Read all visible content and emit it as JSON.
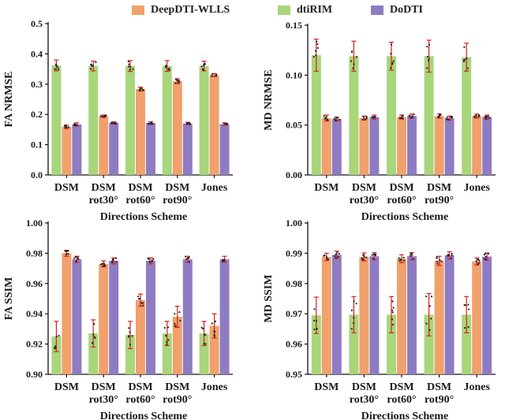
{
  "legend": [
    {
      "name": "DeepDTI-WLLS",
      "color": "#F0A16C"
    },
    {
      "name": "dtiRIM",
      "color": "#A8D67A"
    },
    {
      "name": "DoDTI",
      "color": "#8E7CC3"
    }
  ],
  "colors": {
    "error_bar": "#D62020",
    "point": "#222222",
    "axis": "#111111"
  },
  "chart_data": [
    {
      "type": "bar",
      "id": "fa-nrmse",
      "ylabel": "FA  NRMSE",
      "xlabel": "Directions Scheme",
      "ylim": [
        0,
        0.5
      ],
      "yticks": [
        "0.0",
        "0.1",
        "0.2",
        "0.3",
        "0.4",
        "0.5"
      ],
      "categories": [
        [
          "DSM"
        ],
        [
          "DSM",
          "rot30°"
        ],
        [
          "DSM",
          "rot60°"
        ],
        [
          "DSM",
          "rot90°"
        ],
        [
          "Jones"
        ]
      ],
      "series": [
        {
          "name": "dtiRIM",
          "values": [
            0.362,
            0.36,
            0.36,
            0.36,
            0.36
          ],
          "errors": [
            0.018,
            0.016,
            0.018,
            0.018,
            0.016
          ]
        },
        {
          "name": "DeepDTI-WLLS",
          "values": [
            0.159,
            0.194,
            0.284,
            0.31,
            0.33
          ],
          "errors": [
            0.006,
            0.004,
            0.006,
            0.008,
            0.005
          ]
        },
        {
          "name": "DoDTI",
          "values": [
            0.167,
            0.172,
            0.172,
            0.17,
            0.168
          ],
          "errors": [
            0.005,
            0.004,
            0.004,
            0.004,
            0.004
          ]
        }
      ]
    },
    {
      "type": "bar",
      "id": "md-nrmse",
      "ylabel": "MD  NRMSE",
      "xlabel": "Directions Scheme",
      "ylim": [
        0,
        0.15
      ],
      "yticks": [
        "0.00",
        "0.05",
        "0.10",
        "0.15"
      ],
      "categories": [
        [
          "DSM"
        ],
        [
          "DSM",
          "rot30°"
        ],
        [
          "DSM",
          "rot60°"
        ],
        [
          "DSM",
          "rot90°"
        ],
        [
          "Jones"
        ]
      ],
      "series": [
        {
          "name": "dtiRIM",
          "values": [
            0.12,
            0.119,
            0.119,
            0.119,
            0.118
          ],
          "errors": [
            0.016,
            0.015,
            0.014,
            0.016,
            0.014
          ]
        },
        {
          "name": "DeepDTI-WLLS",
          "values": [
            0.057,
            0.057,
            0.058,
            0.059,
            0.059
          ],
          "errors": [
            0.003,
            0.002,
            0.002,
            0.002,
            0.002
          ]
        },
        {
          "name": "DoDTI",
          "values": [
            0.056,
            0.058,
            0.059,
            0.057,
            0.058
          ],
          "errors": [
            0.002,
            0.002,
            0.002,
            0.002,
            0.002
          ]
        }
      ]
    },
    {
      "type": "bar",
      "id": "fa-ssim",
      "ylabel": "FA  SSIM",
      "xlabel": "Directions Scheme",
      "ylim": [
        0.9,
        1.0
      ],
      "yticks": [
        "0.90",
        "0.92",
        "0.94",
        "0.96",
        "0.98",
        "1.00"
      ],
      "categories": [
        [
          "DSM"
        ],
        [
          "DSM",
          "rot30°"
        ],
        [
          "DSM",
          "rot60°"
        ],
        [
          "DSM",
          "rot90°"
        ],
        [
          "Jones"
        ]
      ],
      "series": [
        {
          "name": "dtiRIM",
          "values": [
            0.925,
            0.927,
            0.926,
            0.927,
            0.927
          ],
          "errors": [
            0.01,
            0.009,
            0.009,
            0.008,
            0.008
          ]
        },
        {
          "name": "DeepDTI-WLLS",
          "values": [
            0.98,
            0.973,
            0.949,
            0.938,
            0.932
          ],
          "errors": [
            0.002,
            0.002,
            0.004,
            0.007,
            0.008
          ]
        },
        {
          "name": "DoDTI",
          "values": [
            0.976,
            0.975,
            0.975,
            0.976,
            0.976
          ],
          "errors": [
            0.002,
            0.002,
            0.002,
            0.002,
            0.002
          ]
        }
      ]
    },
    {
      "type": "bar",
      "id": "md-ssim",
      "ylabel": "MD  SSIM",
      "xlabel": "Directions Scheme",
      "ylim": [
        0.95,
        1.0
      ],
      "yticks": [
        "0.95",
        "0.96",
        "0.97",
        "0.98",
        "0.99",
        "1.00"
      ],
      "categories": [
        [
          "DSM"
        ],
        [
          "DSM",
          "rot30°"
        ],
        [
          "DSM",
          "rot60°"
        ],
        [
          "DSM",
          "rot90°"
        ],
        [
          "Jones"
        ]
      ],
      "series": [
        {
          "name": "dtiRIM",
          "values": [
            0.9695,
            0.9697,
            0.9697,
            0.9697,
            0.9697
          ],
          "errors": [
            0.006,
            0.006,
            0.006,
            0.007,
            0.006
          ]
        },
        {
          "name": "DeepDTI-WLLS",
          "values": [
            0.9888,
            0.9888,
            0.9882,
            0.9875,
            0.9873
          ],
          "errors": [
            0.0012,
            0.0013,
            0.0013,
            0.0015,
            0.0012
          ]
        },
        {
          "name": "DoDTI",
          "values": [
            0.9895,
            0.989,
            0.989,
            0.9893,
            0.9889
          ],
          "errors": [
            0.0012,
            0.0012,
            0.0012,
            0.0012,
            0.0012
          ]
        }
      ]
    }
  ]
}
